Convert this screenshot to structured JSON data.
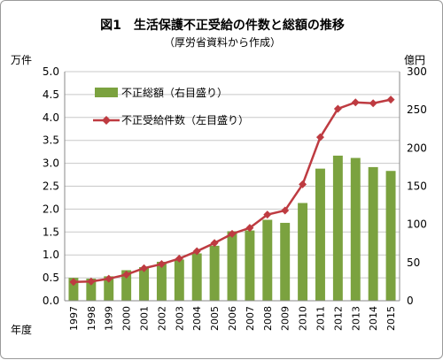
{
  "chart_data": {
    "type": "bar",
    "title": "図1　生活保護不正受給の件数と総額の推移",
    "subtitle": "（厚労省資料から作成）",
    "y_left_unit": "万件",
    "y_right_unit": "億円",
    "x_axis_label": "年度",
    "categories": [
      "1997",
      "1998",
      "1999",
      "2000",
      "2001",
      "2002",
      "2003",
      "2004",
      "2005",
      "2006",
      "2007",
      "2008",
      "2009",
      "2010",
      "2011",
      "2012",
      "2013",
      "2014",
      "2015"
    ],
    "y_left_ticks": [
      "0.0",
      "0.5",
      "1.0",
      "1.5",
      "2.0",
      "2.5",
      "3.0",
      "3.5",
      "4.0",
      "4.5",
      "5.0"
    ],
    "y_right_ticks": [
      "0",
      "50",
      "100",
      "150",
      "200",
      "250",
      "300"
    ],
    "y_left_range": [
      0,
      5
    ],
    "y_right_range": [
      0,
      300
    ],
    "grid": true,
    "legend_placement": "top-left",
    "series": [
      {
        "name": "不正総額（右目盛り）",
        "type": "bar",
        "axis": "right",
        "color": "#7ba23f",
        "values": [
          30,
          29,
          32,
          40,
          44,
          51,
          54,
          62,
          72,
          91,
          92,
          106,
          102,
          128,
          173,
          190,
          187,
          175,
          170
        ]
      },
      {
        "name": "不正受給件数（左目盛り）",
        "type": "line",
        "axis": "left",
        "color": "#be3b41",
        "marker": "diamond",
        "values": [
          0.41,
          0.42,
          0.48,
          0.57,
          0.71,
          0.8,
          0.92,
          1.08,
          1.26,
          1.46,
          1.59,
          1.88,
          1.97,
          2.54,
          3.57,
          4.19,
          4.33,
          4.31,
          4.39
        ]
      }
    ]
  }
}
